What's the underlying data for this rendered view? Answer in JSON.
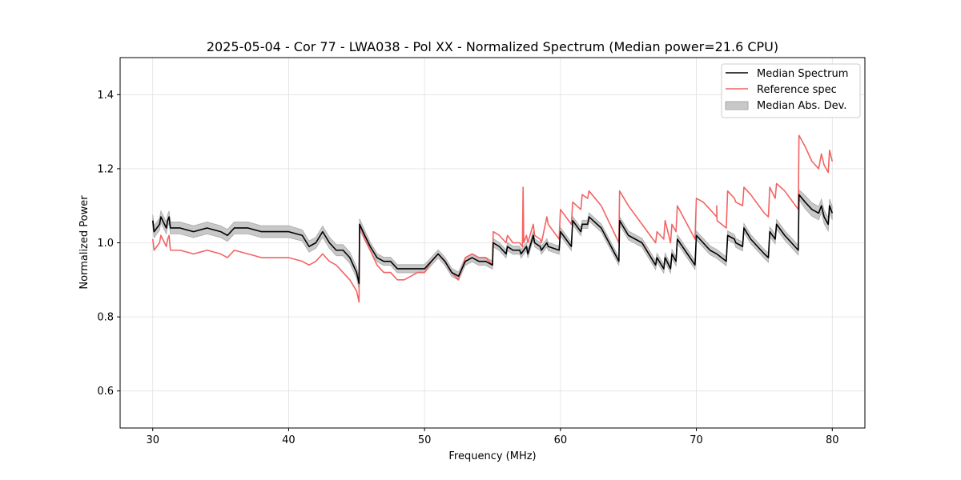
{
  "chart_data": {
    "type": "line",
    "title": "2025-05-04 - Cor 77 - LWA038 - Pol XX - Normalized Spectrum (Median power=21.6 CPU)",
    "xlabel": "Frequency (MHz)",
    "ylabel": "Normalized Power",
    "xlim": [
      27.6,
      82.4
    ],
    "ylim": [
      0.5,
      1.5
    ],
    "xticks": [
      30,
      40,
      50,
      60,
      70,
      80
    ],
    "yticks": [
      0.6,
      0.8,
      1.0,
      1.2,
      1.4
    ],
    "xtick_labels": [
      "30",
      "40",
      "50",
      "60",
      "70",
      "80"
    ],
    "ytick_labels": [
      "0.6",
      "0.8",
      "1.0",
      "1.2",
      "1.4"
    ],
    "grid": true,
    "legend_position": "top-right",
    "legend": [
      "Median Spectrum",
      "Reference spec",
      "Median Abs. Dev."
    ],
    "series": [
      {
        "name": "Median Spectrum",
        "color": "#000000",
        "x": [
          30.0,
          30.1,
          30.5,
          30.6,
          31.0,
          31.1,
          31.2,
          31.3,
          32.0,
          33.0,
          34.0,
          35.0,
          35.5,
          36.0,
          37.0,
          38.0,
          39.0,
          40.0,
          41.0,
          41.5,
          42.0,
          42.5,
          43.0,
          43.5,
          44.0,
          44.5,
          45.0,
          45.18,
          45.22,
          45.6,
          46.0,
          46.5,
          47.0,
          47.5,
          48.0,
          48.5,
          49.0,
          49.5,
          50.0,
          50.5,
          51.0,
          51.5,
          52.0,
          52.5,
          53.0,
          53.5,
          54.0,
          54.5,
          55.0,
          55.05,
          55.5,
          56.0,
          56.1,
          56.5,
          57.0,
          57.1,
          57.5,
          57.6,
          58.0,
          58.1,
          58.5,
          58.6,
          59.0,
          59.1,
          59.9,
          60.0,
          60.8,
          60.9,
          61.5,
          61.6,
          62.0,
          62.1,
          63.0,
          64.3,
          64.35,
          65.0,
          66.0,
          67.0,
          67.1,
          67.6,
          67.7,
          68.1,
          68.2,
          68.5,
          68.6,
          69.9,
          70.0,
          70.5,
          71.0,
          71.5,
          72.2,
          72.3,
          72.8,
          72.9,
          73.4,
          73.5,
          74.0,
          75.0,
          75.3,
          75.4,
          75.8,
          75.9,
          76.5,
          77.5,
          77.55,
          78.0,
          78.5,
          79.0,
          79.2,
          79.4,
          79.7,
          79.8,
          80.0
        ],
        "values": [
          1.06,
          1.03,
          1.05,
          1.07,
          1.04,
          1.06,
          1.07,
          1.04,
          1.04,
          1.03,
          1.04,
          1.03,
          1.02,
          1.04,
          1.04,
          1.03,
          1.03,
          1.03,
          1.02,
          0.99,
          1.0,
          1.03,
          1.0,
          0.98,
          0.98,
          0.96,
          0.92,
          0.89,
          1.05,
          1.02,
          0.99,
          0.96,
          0.95,
          0.95,
          0.93,
          0.93,
          0.93,
          0.93,
          0.93,
          0.95,
          0.97,
          0.95,
          0.92,
          0.91,
          0.95,
          0.96,
          0.95,
          0.95,
          0.94,
          1.0,
          0.99,
          0.97,
          0.99,
          0.98,
          0.98,
          0.97,
          0.99,
          0.97,
          1.02,
          1.0,
          0.99,
          0.98,
          1.0,
          0.99,
          0.98,
          1.03,
          0.99,
          1.06,
          1.03,
          1.05,
          1.05,
          1.07,
          1.04,
          0.95,
          1.06,
          1.02,
          1.0,
          0.94,
          0.96,
          0.93,
          0.96,
          0.93,
          0.97,
          0.95,
          1.01,
          0.94,
          1.02,
          1.0,
          0.98,
          0.97,
          0.95,
          1.02,
          1.01,
          1.0,
          0.99,
          1.04,
          1.01,
          0.97,
          0.96,
          1.03,
          1.01,
          1.05,
          1.02,
          0.98,
          1.13,
          1.11,
          1.09,
          1.08,
          1.1,
          1.07,
          1.05,
          1.1,
          1.08
        ]
      },
      {
        "name": "Reference spec",
        "color": "#f36363",
        "x": [
          30.0,
          30.1,
          30.5,
          30.6,
          31.0,
          31.1,
          31.2,
          31.3,
          32.0,
          33.0,
          34.0,
          35.0,
          35.5,
          36.0,
          37.0,
          38.0,
          39.0,
          40.0,
          41.0,
          41.5,
          42.0,
          42.5,
          43.0,
          43.5,
          44.0,
          44.5,
          45.0,
          45.18,
          45.22,
          45.6,
          46.0,
          46.5,
          47.0,
          47.5,
          48.0,
          48.5,
          49.0,
          49.5,
          50.0,
          50.5,
          51.0,
          51.5,
          52.0,
          52.5,
          53.0,
          53.5,
          54.0,
          54.5,
          55.0,
          55.05,
          55.5,
          56.0,
          56.1,
          56.5,
          57.0,
          57.2,
          57.25,
          57.3,
          57.5,
          57.6,
          58.0,
          58.1,
          58.5,
          58.6,
          59.0,
          59.1,
          59.9,
          60.0,
          60.8,
          60.9,
          61.5,
          61.6,
          62.0,
          62.1,
          63.0,
          64.3,
          64.35,
          65.0,
          66.0,
          67.0,
          67.1,
          67.6,
          67.7,
          68.1,
          68.2,
          68.5,
          68.6,
          69.9,
          70.0,
          70.5,
          71.0,
          71.5,
          71.5,
          71.52,
          72.2,
          72.3,
          72.8,
          72.9,
          73.4,
          73.5,
          74.0,
          75.0,
          75.3,
          75.4,
          75.8,
          75.9,
          76.5,
          77.5,
          77.55,
          78.0,
          78.5,
          79.0,
          79.2,
          79.4,
          79.7,
          79.8,
          80.0
        ],
        "values": [
          1.01,
          0.98,
          1.0,
          1.02,
          0.99,
          1.01,
          1.02,
          0.98,
          0.98,
          0.97,
          0.98,
          0.97,
          0.96,
          0.98,
          0.97,
          0.96,
          0.96,
          0.96,
          0.95,
          0.94,
          0.95,
          0.97,
          0.95,
          0.94,
          0.92,
          0.9,
          0.87,
          0.84,
          1.05,
          1.01,
          0.98,
          0.94,
          0.92,
          0.92,
          0.9,
          0.9,
          0.91,
          0.92,
          0.92,
          0.95,
          0.97,
          0.95,
          0.92,
          0.9,
          0.96,
          0.97,
          0.96,
          0.96,
          0.94,
          1.03,
          1.02,
          1.0,
          1.02,
          1.0,
          1.0,
          0.99,
          1.15,
          1.0,
          1.02,
          1.0,
          1.05,
          1.02,
          1.01,
          1.0,
          1.07,
          1.05,
          1.01,
          1.09,
          1.05,
          1.11,
          1.09,
          1.13,
          1.12,
          1.14,
          1.1,
          1.0,
          1.14,
          1.1,
          1.05,
          1.0,
          1.03,
          1.01,
          1.06,
          1.0,
          1.05,
          1.03,
          1.1,
          1.01,
          1.12,
          1.11,
          1.09,
          1.07,
          1.1,
          1.06,
          1.04,
          1.14,
          1.12,
          1.11,
          1.1,
          1.15,
          1.13,
          1.08,
          1.07,
          1.15,
          1.12,
          1.16,
          1.14,
          1.09,
          1.29,
          1.26,
          1.22,
          1.2,
          1.24,
          1.21,
          1.19,
          1.25,
          1.22
        ]
      }
    ],
    "band": {
      "name": "Median Abs. Dev.",
      "color": "#c8c8c8",
      "edge_color": "#a8a8a8",
      "half_width": [
        0.016,
        0.016,
        0.016,
        0.016,
        0.016,
        0.016,
        0.016,
        0.016,
        0.016,
        0.016,
        0.016,
        0.016,
        0.016,
        0.016,
        0.016,
        0.016,
        0.016,
        0.016,
        0.015,
        0.015,
        0.015,
        0.015,
        0.015,
        0.015,
        0.015,
        0.015,
        0.015,
        0.015,
        0.015,
        0.013,
        0.012,
        0.011,
        0.011,
        0.011,
        0.011,
        0.011,
        0.011,
        0.011,
        0.011,
        0.011,
        0.011,
        0.011,
        0.011,
        0.011,
        0.011,
        0.011,
        0.011,
        0.011,
        0.011,
        0.011,
        0.011,
        0.011,
        0.011,
        0.011,
        0.011,
        0.011,
        0.011,
        0.011,
        0.011,
        0.011,
        0.011,
        0.011,
        0.011,
        0.011,
        0.011,
        0.011,
        0.011,
        0.011,
        0.011,
        0.011,
        0.011,
        0.011,
        0.011,
        0.011,
        0.011,
        0.012,
        0.012,
        0.012,
        0.012,
        0.012,
        0.012,
        0.012,
        0.012,
        0.012,
        0.012,
        0.012,
        0.012,
        0.012,
        0.012,
        0.012,
        0.012,
        0.012,
        0.012,
        0.012,
        0.012,
        0.012,
        0.012,
        0.012,
        0.013,
        0.013,
        0.013,
        0.013,
        0.013,
        0.013,
        0.013,
        0.018,
        0.018,
        0.018,
        0.018,
        0.018,
        0.018,
        0.018,
        0.018
      ]
    }
  }
}
